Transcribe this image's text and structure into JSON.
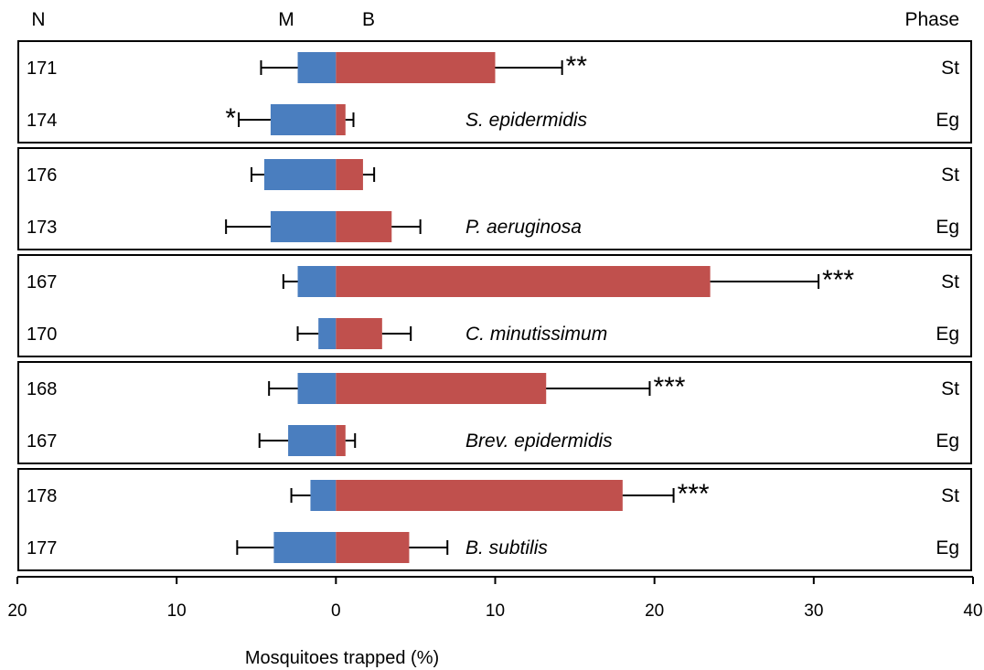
{
  "chart_data": {
    "type": "bar",
    "orientation": "horizontal-diverging",
    "xlabel": "Mosquitoes trapped (%)",
    "column_headers": {
      "n": "N",
      "m": "M",
      "b": "B",
      "phase": "Phase"
    },
    "axis": {
      "min": -20,
      "max": 40,
      "ticks": [
        -20,
        -10,
        0,
        10,
        20,
        30,
        40
      ],
      "tick_labels": [
        "20",
        "10",
        "0",
        "10",
        "20",
        "30",
        "40"
      ]
    },
    "series": [
      {
        "key": "M",
        "color": "#4a7ebf"
      },
      {
        "key": "B",
        "color": "#c0504d"
      }
    ],
    "groups": [
      {
        "species": "S. epidermidis",
        "rows": [
          {
            "n": "171",
            "phase": "St",
            "m": 2.4,
            "m_err": 2.3,
            "b": 10.0,
            "b_err": 4.2,
            "sig": "**",
            "sig_side": "b"
          },
          {
            "n": "174",
            "phase": "Eg",
            "m": 4.1,
            "m_err": 2.0,
            "b": 0.6,
            "b_err": 0.5,
            "sig": "*",
            "sig_side": "m"
          }
        ]
      },
      {
        "species": "P. aeruginosa",
        "rows": [
          {
            "n": "176",
            "phase": "St",
            "m": 4.5,
            "m_err": 0.8,
            "b": 1.7,
            "b_err": 0.7,
            "sig": "",
            "sig_side": ""
          },
          {
            "n": "173",
            "phase": "Eg",
            "m": 4.1,
            "m_err": 2.8,
            "b": 3.5,
            "b_err": 1.8,
            "sig": "",
            "sig_side": ""
          }
        ]
      },
      {
        "species": "C. minutissimum",
        "rows": [
          {
            "n": "167",
            "phase": "St",
            "m": 2.4,
            "m_err": 0.9,
            "b": 23.5,
            "b_err": 6.8,
            "sig": "***",
            "sig_side": "b"
          },
          {
            "n": "170",
            "phase": "Eg",
            "m": 1.1,
            "m_err": 1.3,
            "b": 2.9,
            "b_err": 1.8,
            "sig": "",
            "sig_side": ""
          }
        ]
      },
      {
        "species": "Brev. epidermidis",
        "rows": [
          {
            "n": "168",
            "phase": "St",
            "m": 2.4,
            "m_err": 1.8,
            "b": 13.2,
            "b_err": 6.5,
            "sig": "***",
            "sig_side": "b"
          },
          {
            "n": "167",
            "phase": "Eg",
            "m": 3.0,
            "m_err": 1.8,
            "b": 0.6,
            "b_err": 0.6,
            "sig": "",
            "sig_side": ""
          }
        ]
      },
      {
        "species": "B. subtilis",
        "rows": [
          {
            "n": "178",
            "phase": "St",
            "m": 1.6,
            "m_err": 1.2,
            "b": 18.0,
            "b_err": 3.2,
            "sig": "***",
            "sig_side": "b"
          },
          {
            "n": "177",
            "phase": "Eg",
            "m": 3.9,
            "m_err": 2.3,
            "b": 4.6,
            "b_err": 2.4,
            "sig": "",
            "sig_side": ""
          }
        ]
      }
    ]
  }
}
